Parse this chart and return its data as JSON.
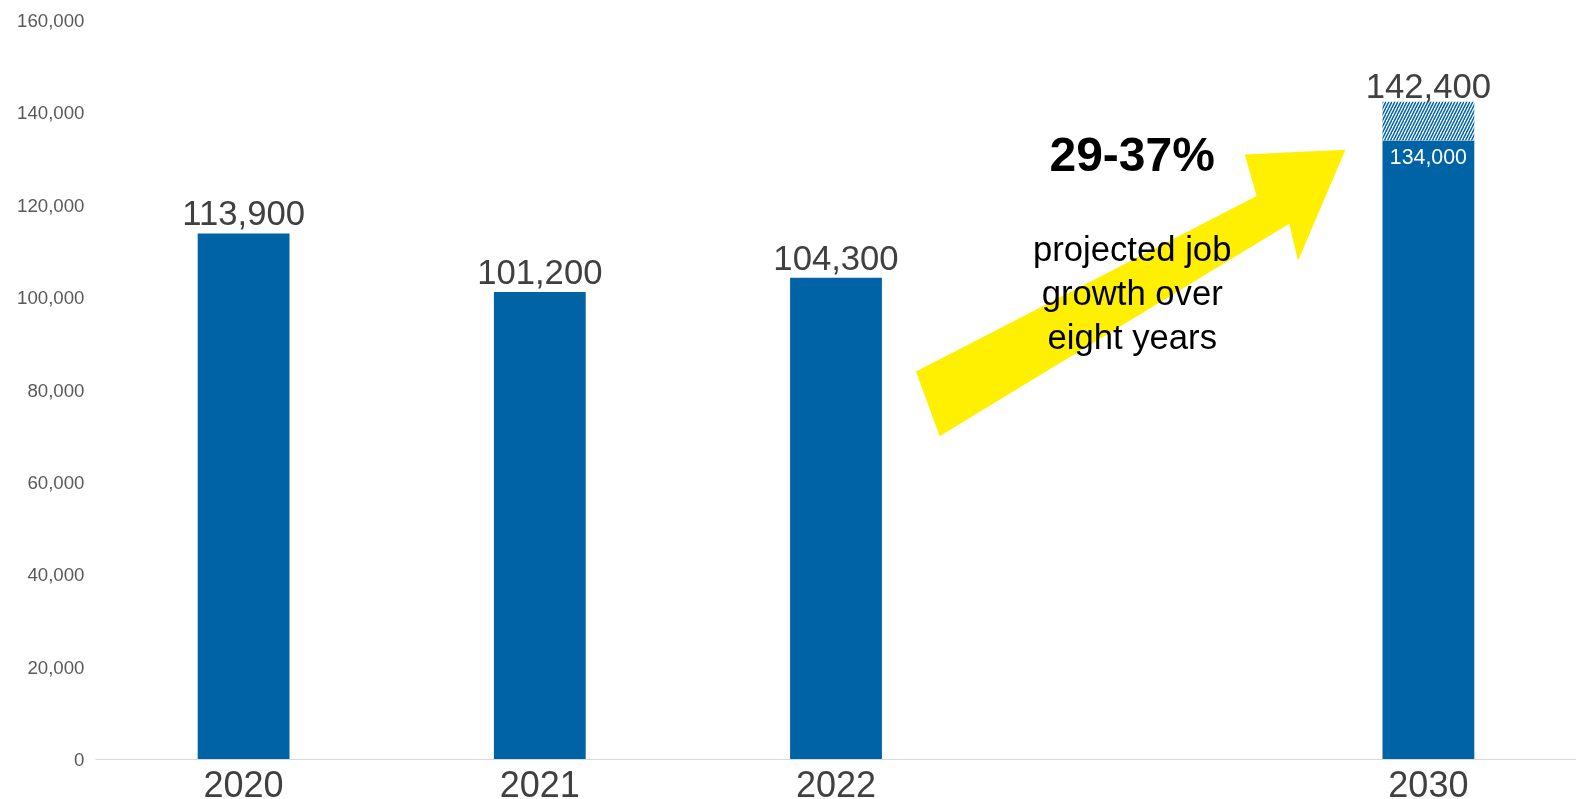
{
  "chart_data": {
    "type": "bar",
    "stacked": true,
    "categories": [
      "2020",
      "2021",
      "2022",
      null,
      "2030"
    ],
    "series": [
      {
        "color": "#0063a6",
        "values": [
          113900,
          101200,
          104300,
          null,
          134000
        ],
        "value_labels": [
          "113,900",
          "101,200",
          "104,300",
          null,
          "134,000"
        ]
      },
      {
        "color": "#0063a6",
        "values": [
          null,
          null,
          null,
          null,
          8400
        ]
      }
    ],
    "totals": [
      null,
      null,
      null,
      null,
      "142,400"
    ],
    "ylim": [
      0,
      160000
    ],
    "yticks": [
      {
        "value": 0,
        "label": "0"
      },
      {
        "value": 20000,
        "label": "20,000"
      },
      {
        "value": 40000,
        "label": "40,000"
      },
      {
        "value": 60000,
        "label": "60,000"
      },
      {
        "value": 80000,
        "label": "80,000"
      },
      {
        "value": 100000,
        "label": "100,000"
      },
      {
        "value": 120000,
        "label": "120,000"
      },
      {
        "value": 140000,
        "label": "140,000"
      },
      {
        "value": 160000,
        "label": "160,000"
      }
    ],
    "grid": false,
    "annotations": [
      "29-37%",
      "projected job\ngrowth over\neight years"
    ]
  }
}
